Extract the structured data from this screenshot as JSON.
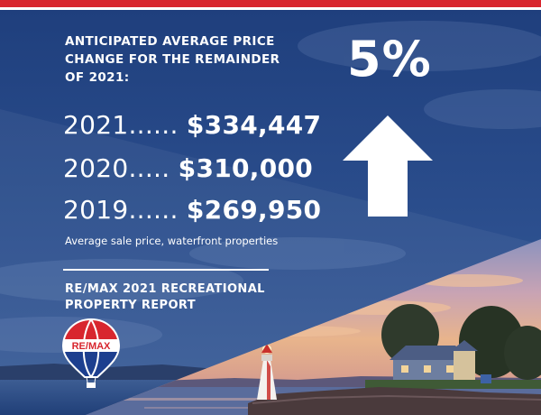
{
  "colors": {
    "brand_red": "#d8262e",
    "brand_blue": "#1d3a72",
    "text": "#ffffff"
  },
  "headline": {
    "line1": "ANTICIPATED AVERAGE PRICE",
    "line2": "CHANGE FOR THE REMAINDER",
    "line3": "OF 2021:"
  },
  "percent_change": "5%",
  "arrow_icon": "arrow-up-icon",
  "prices": [
    {
      "year": "2021......",
      "value": "$334,447"
    },
    {
      "year": "2020.....",
      "value": "$310,000"
    },
    {
      "year": "2019......",
      "value": "$269,950"
    }
  ],
  "caption": "Average sale price, waterfront properties",
  "report": {
    "line1": "RE/MAX 2021 RECREATIONAL",
    "line2": "PROPERTY REPORT"
  },
  "logo": {
    "icon": "remax-balloon-logo",
    "text": "RE/MAX"
  }
}
